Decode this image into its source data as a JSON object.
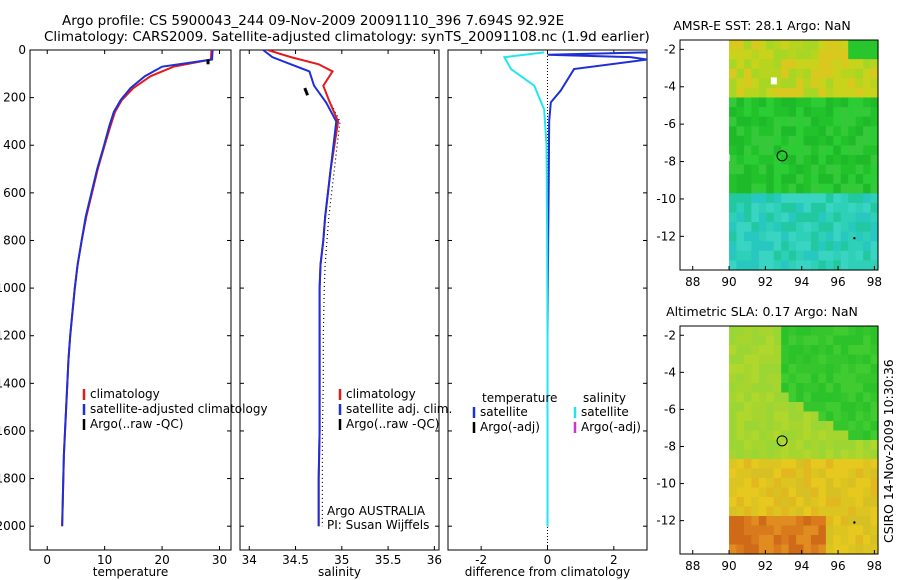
{
  "header": {
    "line1": "Argo profile: CS 5900043_244 09-Nov-2009 20091110_396 7.694S 92.92E",
    "line2": "Climatology: CARS2009. Satellite-adjusted climatology: synTS_20091108.nc (1.9d earlier)"
  },
  "colors": {
    "climatology": "#e41a1c",
    "satellite": "#1f2fd6",
    "argo": "#000000",
    "satellite_salinity": "#22e5f0",
    "argo_adj_salinity": "#cc33cc"
  },
  "chart_data": [
    {
      "type": "line",
      "name": "temperature",
      "xlabel": "temperature",
      "ylabel": "",
      "xlim": [
        -3,
        32
      ],
      "ylim": [
        2100,
        0
      ],
      "x_ticks": [
        "0",
        "10",
        "20",
        "30"
      ],
      "y_ticks": [
        "0",
        "200",
        "400",
        "600",
        "800",
        "1000",
        "1200",
        "1400",
        "1600",
        "1800",
        "2000"
      ],
      "legend": [
        "climatology",
        "satellite-adjusted climatology",
        "Argo(..raw -QC)"
      ],
      "series": [
        {
          "name": "climatology",
          "color": "climatology",
          "points": [
            [
              28.6,
              0
            ],
            [
              28.5,
              40
            ],
            [
              22,
              70
            ],
            [
              18,
              110
            ],
            [
              15,
              160
            ],
            [
              13,
              210
            ],
            [
              11.8,
              260
            ],
            [
              11,
              320
            ],
            [
              10,
              400
            ],
            [
              8.8,
              500
            ],
            [
              7.8,
              600
            ],
            [
              6.8,
              700
            ],
            [
              6,
              800
            ],
            [
              5.3,
              900
            ],
            [
              4.8,
              1000
            ],
            [
              4.4,
              1100
            ],
            [
              4,
              1200
            ],
            [
              3.7,
              1300
            ],
            [
              3.5,
              1400
            ],
            [
              3.3,
              1500
            ],
            [
              3.1,
              1600
            ],
            [
              2.9,
              1700
            ],
            [
              2.8,
              1800
            ],
            [
              2.7,
              1900
            ],
            [
              2.6,
              2000
            ]
          ]
        },
        {
          "name": "satellite-adjusted climatology",
          "color": "satellite",
          "points": [
            [
              28.8,
              0
            ],
            [
              28.7,
              40
            ],
            [
              20,
              70
            ],
            [
              17,
              110
            ],
            [
              14.5,
              160
            ],
            [
              12.8,
              210
            ],
            [
              11.6,
              260
            ],
            [
              10.8,
              320
            ],
            [
              9.9,
              400
            ],
            [
              8.7,
              500
            ],
            [
              7.7,
              600
            ],
            [
              6.7,
              700
            ],
            [
              6,
              800
            ],
            [
              5.3,
              900
            ],
            [
              4.8,
              1000
            ],
            [
              4.4,
              1100
            ],
            [
              4,
              1200
            ],
            [
              3.7,
              1300
            ],
            [
              3.5,
              1400
            ],
            [
              3.3,
              1500
            ],
            [
              3.1,
              1600
            ],
            [
              2.9,
              1700
            ],
            [
              2.8,
              1800
            ],
            [
              2.7,
              1900
            ],
            [
              2.6,
              2000
            ]
          ]
        },
        {
          "name": "Argo(..raw -QC)",
          "color": "argo",
          "points": [
            [
              28,
              40
            ],
            [
              28,
              60
            ]
          ]
        }
      ]
    },
    {
      "type": "line",
      "name": "salinity",
      "xlabel": "salinity",
      "xlim": [
        33.9,
        36.05
      ],
      "ylim": [
        2100,
        0
      ],
      "x_ticks": [
        "34",
        "34.5",
        "35",
        "35.5",
        "36"
      ],
      "legend": [
        "climatology",
        "satellite adj. clim.",
        "Argo(..raw -QC)"
      ],
      "annotations": [
        "Argo AUSTRALIA",
        "PI: Susan Wijffels"
      ],
      "series": [
        {
          "name": "climatology",
          "color": "climatology",
          "points": [
            [
              34.2,
              0
            ],
            [
              34.45,
              30
            ],
            [
              34.75,
              60
            ],
            [
              34.9,
              90
            ],
            [
              34.8,
              150
            ],
            [
              34.87,
              220
            ],
            [
              34.96,
              300
            ],
            [
              34.92,
              400
            ],
            [
              34.88,
              500
            ],
            [
              34.85,
              600
            ],
            [
              34.82,
              700
            ],
            [
              34.8,
              800
            ],
            [
              34.77,
              900
            ],
            [
              34.76,
              1000
            ],
            [
              34.76,
              1100
            ],
            [
              34.76,
              1200
            ],
            [
              34.76,
              1400
            ],
            [
              34.76,
              1600
            ],
            [
              34.75,
              1800
            ],
            [
              34.75,
              2000
            ]
          ]
        },
        {
          "name": "satellite adj. clim.",
          "color": "satellite",
          "points": [
            [
              34.15,
              0
            ],
            [
              34.25,
              30
            ],
            [
              34.45,
              60
            ],
            [
              34.65,
              90
            ],
            [
              34.7,
              150
            ],
            [
              34.83,
              220
            ],
            [
              34.94,
              300
            ],
            [
              34.91,
              400
            ],
            [
              34.88,
              500
            ],
            [
              34.85,
              600
            ],
            [
              34.82,
              700
            ],
            [
              34.8,
              800
            ],
            [
              34.77,
              900
            ],
            [
              34.76,
              1000
            ],
            [
              34.76,
              1100
            ],
            [
              34.76,
              1200
            ],
            [
              34.76,
              1400
            ],
            [
              34.76,
              1600
            ],
            [
              34.75,
              1800
            ],
            [
              34.75,
              2000
            ]
          ]
        },
        {
          "name": "Argo(..raw -QC)",
          "color": "argo",
          "points": [
            [
              34.6,
              160
            ],
            [
              34.63,
              190
            ]
          ]
        }
      ]
    },
    {
      "type": "line",
      "name": "difference",
      "xlabel": "difference from climatology",
      "xlim": [
        -3,
        3
      ],
      "ylim": [
        2100,
        0
      ],
      "x_ticks": [
        "-2",
        "0",
        "2"
      ],
      "legend_headers": [
        "temperature",
        "salinity"
      ],
      "legend": [
        "satellite",
        "Argo(-adj)",
        "satellite",
        "Argo(-adj)"
      ],
      "series": [
        {
          "name": "temperature satellite",
          "color": "satellite",
          "points": [
            [
              3,
              10
            ],
            [
              0,
              20
            ],
            [
              2.5,
              30
            ],
            [
              3,
              40
            ],
            [
              0.8,
              80
            ],
            [
              0.4,
              170
            ],
            [
              0.1,
              220
            ],
            [
              0.05,
              300
            ],
            [
              0.04,
              500
            ],
            [
              0.02,
              800
            ],
            [
              0,
              1200
            ],
            [
              0,
              2000
            ]
          ]
        },
        {
          "name": "salinity satellite",
          "color": "satellite_salinity",
          "points": [
            [
              -0.1,
              10
            ],
            [
              -1.3,
              30
            ],
            [
              -1.1,
              80
            ],
            [
              -0.4,
              150
            ],
            [
              -0.1,
              250
            ],
            [
              -0.03,
              400
            ],
            [
              -0.01,
              800
            ],
            [
              0,
              1200
            ],
            [
              0,
              2000
            ]
          ]
        }
      ]
    }
  ],
  "maps": [
    {
      "title": "AMSR-E SST: 28.1 Argo: NaN",
      "x_ticks": [
        "88",
        "90",
        "92",
        "94",
        "96",
        "98"
      ],
      "y_ticks": [
        "-2",
        "-4",
        "-6",
        "-8",
        "-10",
        "-12"
      ]
    },
    {
      "title": "Altimetric SLA: 0.17 Argo: NaN",
      "x_ticks": [
        "88",
        "90",
        "92",
        "94",
        "96",
        "98"
      ],
      "y_ticks": [
        "-2",
        "-4",
        "-6",
        "-8",
        "-10",
        "-12"
      ]
    }
  ],
  "footer_vertical": "CSIRO 14-Nov-2009 10:30:36"
}
